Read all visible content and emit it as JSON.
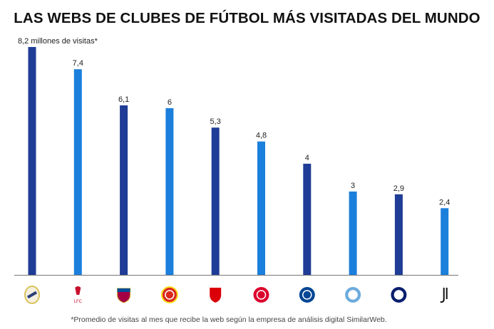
{
  "chart_data": {
    "type": "bar",
    "title": "LAS WEBS DE CLUBES DE FÚTBOL MÁS VISITADAS DEL MUNDO",
    "unit_label": "millones de visitas*",
    "categories": [
      "Real Madrid",
      "Liverpool",
      "Barcelona",
      "Manchester United",
      "Arsenal",
      "Bayern Múnich",
      "Chelsea",
      "Manchester City",
      "Inter",
      "Juventus"
    ],
    "values": [
      8.2,
      7.4,
      6.1,
      6,
      5.3,
      4.8,
      4,
      3,
      2.9,
      2.4
    ],
    "labels": [
      "8,2 millones de visitas*",
      "7,4",
      "6,1",
      "6",
      "5,3",
      "4,8",
      "4",
      "3",
      "2,9",
      "2,4"
    ],
    "logo_text": [
      "",
      "LFC",
      "",
      "",
      "",
      "",
      "",
      "",
      "",
      ""
    ],
    "ylim": [
      0,
      8.2
    ],
    "grid": false,
    "footnote": "*Promedio de visitas al mes que recibe la web según la empresa de análisis digital SimilarWeb.",
    "colors": {
      "dark": "#1f3c96",
      "light": "#1b7fdc"
    },
    "logo_colors": [
      "#d9c25a",
      "#c8102e",
      "#a50044",
      "#da291c",
      "#db0007",
      "#dc052d",
      "#034694",
      "#6cabdd",
      "#0a1e6e",
      "#111111"
    ]
  }
}
